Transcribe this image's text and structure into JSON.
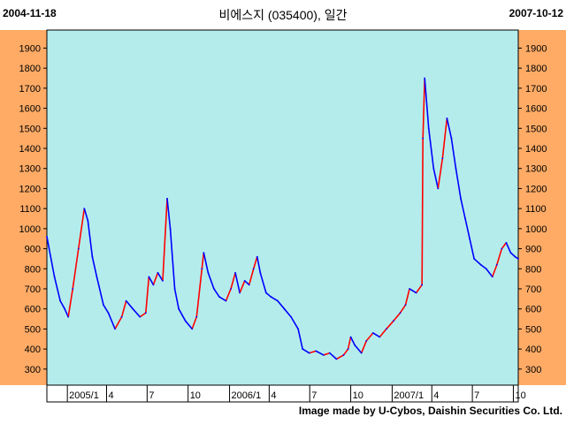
{
  "header": {
    "date_start": "2004-11-18",
    "date_end": "2007-10-12",
    "title": "비에스지 (035400), 일간"
  },
  "footer": {
    "credit": "Image made by U-Cybos, Daishin Securities Co. Ltd."
  },
  "colors": {
    "plot_bg": "#b4ecec",
    "axis_bg": "#ffab66",
    "up": "#ff0000",
    "down": "#0000ff"
  },
  "chart_data": {
    "type": "line",
    "title": "비에스지 (035400), 일간",
    "ylim": [
      220,
      1990
    ],
    "yticks": [
      300,
      400,
      500,
      600,
      700,
      800,
      900,
      1000,
      1100,
      1200,
      1300,
      1400,
      1500,
      1600,
      1700,
      1800,
      1900
    ],
    "xlim": [
      "2004-11-18",
      "2007-10-12"
    ],
    "xticks": [
      {
        "date": "2005-01-03",
        "label": "2005/1"
      },
      {
        "date": "2005-04-01",
        "label": "4"
      },
      {
        "date": "2005-07-01",
        "label": "7"
      },
      {
        "date": "2005-10-01",
        "label": "10"
      },
      {
        "date": "2006-01-02",
        "label": "2006/1"
      },
      {
        "date": "2006-04-01",
        "label": "4"
      },
      {
        "date": "2006-07-01",
        "label": "7"
      },
      {
        "date": "2006-10-01",
        "label": "10"
      },
      {
        "date": "2007-01-02",
        "label": "2007/1"
      },
      {
        "date": "2007-04-01",
        "label": "4"
      },
      {
        "date": "2007-07-01",
        "label": "7"
      },
      {
        "date": "2007-10-01",
        "label": "10"
      }
    ],
    "grid": false,
    "series": [
      {
        "values": [
          [
            "2004-11-18",
            960
          ],
          [
            "2004-12-05",
            760
          ],
          [
            "2004-12-18",
            640
          ],
          [
            "2004-12-28",
            600
          ],
          [
            "2005-01-05",
            560
          ],
          [
            "2005-01-15",
            700
          ],
          [
            "2005-01-28",
            900
          ],
          [
            "2005-02-10",
            1100
          ],
          [
            "2005-02-18",
            1040
          ],
          [
            "2005-02-28",
            860
          ],
          [
            "2005-03-10",
            760
          ],
          [
            "2005-03-25",
            620
          ],
          [
            "2005-04-05",
            580
          ],
          [
            "2005-04-20",
            500
          ],
          [
            "2005-05-05",
            560
          ],
          [
            "2005-05-15",
            640
          ],
          [
            "2005-05-30",
            600
          ],
          [
            "2005-06-15",
            560
          ],
          [
            "2005-06-28",
            580
          ],
          [
            "2005-07-05",
            760
          ],
          [
            "2005-07-15",
            720
          ],
          [
            "2005-07-25",
            780
          ],
          [
            "2005-08-05",
            740
          ],
          [
            "2005-08-15",
            1150
          ],
          [
            "2005-08-22",
            1000
          ],
          [
            "2005-09-01",
            700
          ],
          [
            "2005-09-10",
            600
          ],
          [
            "2005-09-25",
            540
          ],
          [
            "2005-10-10",
            500
          ],
          [
            "2005-10-20",
            560
          ],
          [
            "2005-11-01",
            800
          ],
          [
            "2005-11-05",
            880
          ],
          [
            "2005-11-15",
            780
          ],
          [
            "2005-11-28",
            700
          ],
          [
            "2005-12-10",
            660
          ],
          [
            "2005-12-25",
            640
          ],
          [
            "2006-01-05",
            700
          ],
          [
            "2006-01-15",
            780
          ],
          [
            "2006-01-25",
            680
          ],
          [
            "2006-02-05",
            740
          ],
          [
            "2006-02-15",
            720
          ],
          [
            "2006-02-25",
            800
          ],
          [
            "2006-03-05",
            860
          ],
          [
            "2006-03-12",
            780
          ],
          [
            "2006-03-25",
            680
          ],
          [
            "2006-04-05",
            660
          ],
          [
            "2006-04-20",
            640
          ],
          [
            "2006-05-05",
            600
          ],
          [
            "2006-05-20",
            560
          ],
          [
            "2006-06-05",
            500
          ],
          [
            "2006-06-15",
            400
          ],
          [
            "2006-06-30",
            380
          ],
          [
            "2006-07-15",
            390
          ],
          [
            "2006-08-01",
            370
          ],
          [
            "2006-08-15",
            380
          ],
          [
            "2006-08-30",
            350
          ],
          [
            "2006-09-15",
            370
          ],
          [
            "2006-09-25",
            400
          ],
          [
            "2006-10-01",
            460
          ],
          [
            "2006-10-10",
            420
          ],
          [
            "2006-10-25",
            380
          ],
          [
            "2006-11-05",
            440
          ],
          [
            "2006-11-20",
            480
          ],
          [
            "2006-12-05",
            460
          ],
          [
            "2006-12-20",
            500
          ],
          [
            "2007-01-05",
            540
          ],
          [
            "2007-01-20",
            580
          ],
          [
            "2007-02-01",
            620
          ],
          [
            "2007-02-10",
            700
          ],
          [
            "2007-02-25",
            680
          ],
          [
            "2007-03-10",
            720
          ],
          [
            "2007-03-12",
            1450
          ],
          [
            "2007-03-16",
            1750
          ],
          [
            "2007-03-25",
            1500
          ],
          [
            "2007-04-05",
            1300
          ],
          [
            "2007-04-15",
            1200
          ],
          [
            "2007-04-25",
            1350
          ],
          [
            "2007-05-05",
            1550
          ],
          [
            "2007-05-15",
            1450
          ],
          [
            "2007-05-25",
            1300
          ],
          [
            "2007-06-05",
            1150
          ],
          [
            "2007-06-15",
            1050
          ],
          [
            "2007-06-25",
            950
          ],
          [
            "2007-07-05",
            850
          ],
          [
            "2007-07-20",
            820
          ],
          [
            "2007-08-01",
            800
          ],
          [
            "2007-08-15",
            760
          ],
          [
            "2007-08-25",
            820
          ],
          [
            "2007-09-05",
            900
          ],
          [
            "2007-09-15",
            930
          ],
          [
            "2007-09-25",
            880
          ],
          [
            "2007-10-05",
            860
          ],
          [
            "2007-10-12",
            850
          ]
        ]
      }
    ]
  }
}
